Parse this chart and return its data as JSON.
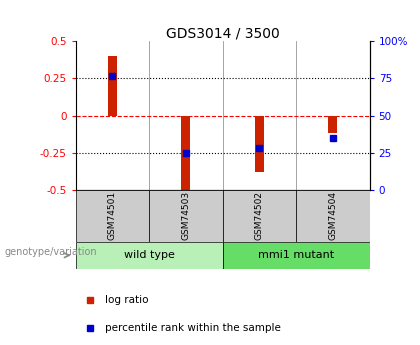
{
  "title": "GDS3014 / 3500",
  "samples": [
    "GSM74501",
    "GSM74503",
    "GSM74502",
    "GSM74504"
  ],
  "log_ratios": [
    0.4,
    -0.5,
    -0.38,
    -0.12
  ],
  "percentile_ranks_mapped": [
    0.27,
    -0.25,
    -0.22,
    -0.15
  ],
  "groups": [
    {
      "label": "wild type",
      "indices": [
        0,
        1
      ],
      "color": "#b8f0b8"
    },
    {
      "label": "mmi1 mutant",
      "indices": [
        2,
        3
      ],
      "color": "#66dd66"
    }
  ],
  "bar_color": "#cc2200",
  "marker_color": "#0000cc",
  "ylim_left": [
    -0.5,
    0.5
  ],
  "ylim_right": [
    0,
    100
  ],
  "yticks_left": [
    -0.5,
    -0.25,
    0,
    0.25,
    0.5
  ],
  "yticks_right": [
    0,
    25,
    50,
    75,
    100
  ],
  "ytick_labels_left": [
    "-0.5",
    "-0.25",
    "0",
    "0.25",
    "0.5"
  ],
  "ytick_labels_right": [
    "0",
    "25",
    "50",
    "75",
    "100%"
  ],
  "sample_bg_color": "#cccccc",
  "legend_log_ratio": "log ratio",
  "legend_percentile": "percentile rank within the sample",
  "genotype_label": "genotype/variation",
  "bar_width": 0.12
}
